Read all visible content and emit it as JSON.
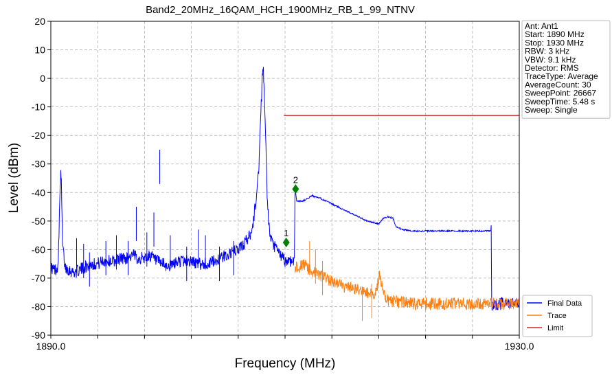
{
  "chart_data": {
    "type": "line",
    "title": "Band2_20MHz_16QAM_HCH_1900MHz_RB_1_99_NTNV",
    "xlabel": "Frequency (MHz)",
    "ylabel": "Level (dBm)",
    "xlim": [
      1890.0,
      1930.0
    ],
    "ylim": [
      -90,
      20
    ],
    "x_tick_labels": [
      "1890.0",
      "1930.0"
    ],
    "x_minor_ticks": [
      1890,
      1894,
      1898,
      1902,
      1906,
      1910,
      1914,
      1918,
      1922,
      1926,
      1930
    ],
    "y_ticks": [
      20,
      10,
      0,
      -10,
      -20,
      -30,
      -40,
      -50,
      -60,
      -70,
      -80,
      -90
    ],
    "grid": true,
    "legend_position": "bottom-right",
    "series": [
      {
        "name": "Final Data",
        "color": "#0000ff",
        "points": [
          [
            1890.0,
            -66
          ],
          [
            1890.2,
            -67
          ],
          [
            1890.4,
            -67
          ],
          [
            1890.6,
            -66
          ],
          [
            1890.7,
            -55
          ],
          [
            1890.8,
            -36
          ],
          [
            1890.85,
            -34
          ],
          [
            1890.9,
            -37
          ],
          [
            1891.0,
            -58
          ],
          [
            1891.2,
            -66
          ],
          [
            1891.5,
            -67
          ],
          [
            1892.0,
            -68
          ],
          [
            1892.5,
            -67
          ],
          [
            1893.0,
            -66
          ],
          [
            1893.5,
            -65
          ],
          [
            1894.0,
            -65
          ],
          [
            1894.5,
            -64
          ],
          [
            1895.0,
            -64
          ],
          [
            1895.5,
            -64
          ],
          [
            1896.0,
            -63
          ],
          [
            1896.5,
            -63
          ],
          [
            1897.0,
            -62
          ],
          [
            1897.5,
            -63
          ],
          [
            1898.0,
            -63
          ],
          [
            1898.5,
            -62
          ],
          [
            1899.0,
            -64
          ],
          [
            1899.5,
            -65
          ],
          [
            1900.0,
            -66
          ],
          [
            1900.5,
            -65
          ],
          [
            1901.0,
            -64
          ],
          [
            1901.5,
            -64
          ],
          [
            1902.0,
            -64
          ],
          [
            1902.5,
            -65
          ],
          [
            1903.0,
            -65
          ],
          [
            1903.5,
            -65
          ],
          [
            1904.0,
            -64
          ],
          [
            1904.5,
            -63
          ],
          [
            1905.0,
            -62
          ],
          [
            1905.5,
            -61
          ],
          [
            1906.0,
            -60
          ],
          [
            1906.5,
            -58
          ],
          [
            1907.0,
            -55
          ],
          [
            1907.3,
            -50
          ],
          [
            1907.6,
            -40
          ],
          [
            1907.8,
            -28
          ],
          [
            1907.9,
            -15
          ],
          [
            1908.0,
            -6
          ],
          [
            1908.05,
            2
          ],
          [
            1908.1,
            3.5
          ],
          [
            1908.15,
            2
          ],
          [
            1908.2,
            -4
          ],
          [
            1908.3,
            -15
          ],
          [
            1908.4,
            -30
          ],
          [
            1908.5,
            -45
          ],
          [
            1908.7,
            -55
          ],
          [
            1908.9,
            -58
          ],
          [
            1909.1,
            -59
          ],
          [
            1909.3,
            -60
          ],
          [
            1909.6,
            -62
          ],
          [
            1909.8,
            -63
          ],
          [
            1910.0,
            -64
          ],
          [
            1910.3,
            -64
          ],
          [
            1910.6,
            -64
          ],
          [
            1910.8,
            -63
          ],
          [
            1910.85,
            -38.5
          ],
          [
            1911.0,
            -43
          ],
          [
            1911.5,
            -43
          ],
          [
            1912.0,
            -42
          ],
          [
            1912.3,
            -41
          ],
          [
            1912.5,
            -41.5
          ],
          [
            1913.0,
            -42
          ],
          [
            1913.5,
            -43
          ],
          [
            1914.0,
            -44
          ],
          [
            1914.5,
            -45
          ],
          [
            1915.0,
            -46
          ],
          [
            1915.5,
            -47
          ],
          [
            1916.0,
            -48
          ],
          [
            1916.5,
            -49
          ],
          [
            1917.0,
            -50
          ],
          [
            1917.5,
            -50.5
          ],
          [
            1918.0,
            -51
          ],
          [
            1918.4,
            -49
          ],
          [
            1918.8,
            -48.5
          ],
          [
            1919.2,
            -49
          ],
          [
            1919.5,
            -52
          ],
          [
            1920.0,
            -53
          ],
          [
            1921.0,
            -53.5
          ],
          [
            1922.0,
            -53.5
          ],
          [
            1924.0,
            -53.5
          ],
          [
            1926.0,
            -53.5
          ],
          [
            1927.0,
            -53.5
          ],
          [
            1927.6,
            -53.5
          ],
          [
            1927.65,
            -80
          ],
          [
            1928.0,
            -79
          ],
          [
            1929.0,
            -79
          ],
          [
            1930.0,
            -79
          ]
        ],
        "spikes": [
          [
            1892.2,
            -56
          ],
          [
            1892.8,
            -58
          ],
          [
            1893.3,
            -61
          ],
          [
            1894.7,
            -57
          ],
          [
            1895.6,
            -55
          ],
          [
            1896.6,
            -57
          ],
          [
            1897.3,
            -45
          ],
          [
            1898.2,
            -54
          ],
          [
            1898.8,
            -47
          ],
          [
            1899.3,
            -25
          ],
          [
            1900.2,
            -55
          ],
          [
            1901.6,
            -59
          ],
          [
            1902.6,
            -53
          ],
          [
            1903.2,
            -55
          ],
          [
            1904.4,
            -59
          ],
          [
            1905.6,
            -57
          ]
        ]
      },
      {
        "name": "Trace",
        "color": "#ff7f0e",
        "points": [
          [
            1910.85,
            -66
          ],
          [
            1911.2,
            -66
          ],
          [
            1911.6,
            -65
          ],
          [
            1912.0,
            -67
          ],
          [
            1912.5,
            -68
          ],
          [
            1913.0,
            -69
          ],
          [
            1913.5,
            -70
          ],
          [
            1914.0,
            -71
          ],
          [
            1914.5,
            -72
          ],
          [
            1915.0,
            -73
          ],
          [
            1915.5,
            -73.5
          ],
          [
            1916.0,
            -74
          ],
          [
            1916.5,
            -74.5
          ],
          [
            1917.0,
            -75
          ],
          [
            1917.5,
            -76
          ],
          [
            1917.8,
            -74
          ],
          [
            1918.0,
            -70
          ],
          [
            1918.1,
            -69
          ],
          [
            1918.3,
            -73
          ],
          [
            1918.6,
            -77
          ],
          [
            1919.0,
            -78
          ],
          [
            1920.0,
            -78.5
          ],
          [
            1921.0,
            -79
          ],
          [
            1922.0,
            -79
          ],
          [
            1924.0,
            -79
          ],
          [
            1926.0,
            -79
          ],
          [
            1928.0,
            -79
          ],
          [
            1930.0,
            -79
          ]
        ],
        "spikes": [
          [
            1912.1,
            -57
          ],
          [
            1912.6,
            -60
          ],
          [
            1913.2,
            -64
          ],
          [
            1916.6,
            -73
          ],
          [
            1917.4,
            -72
          ]
        ]
      },
      {
        "name": "Limit",
        "color": "#d62728",
        "points": [
          [
            1909.9,
            -13
          ],
          [
            1930.0,
            -13
          ]
        ]
      }
    ],
    "markers": [
      {
        "label": "1",
        "x": 1910.1,
        "y": -57.5,
        "color": "#008000"
      },
      {
        "label": "2",
        "x": 1910.9,
        "y": -38.8,
        "color": "#008000"
      }
    ],
    "info_box": [
      "Ant: Ant1",
      "Start: 1890 MHz",
      "Stop: 1930 MHz",
      "RBW: 3 kHz",
      "VBW: 9.1 kHz",
      "Detector: RMS",
      "TraceType: Average",
      "AverageCount: 30",
      "SweepPoint: 26667",
      "SweepTime: 5.48 s",
      "Sweep: Single"
    ]
  }
}
